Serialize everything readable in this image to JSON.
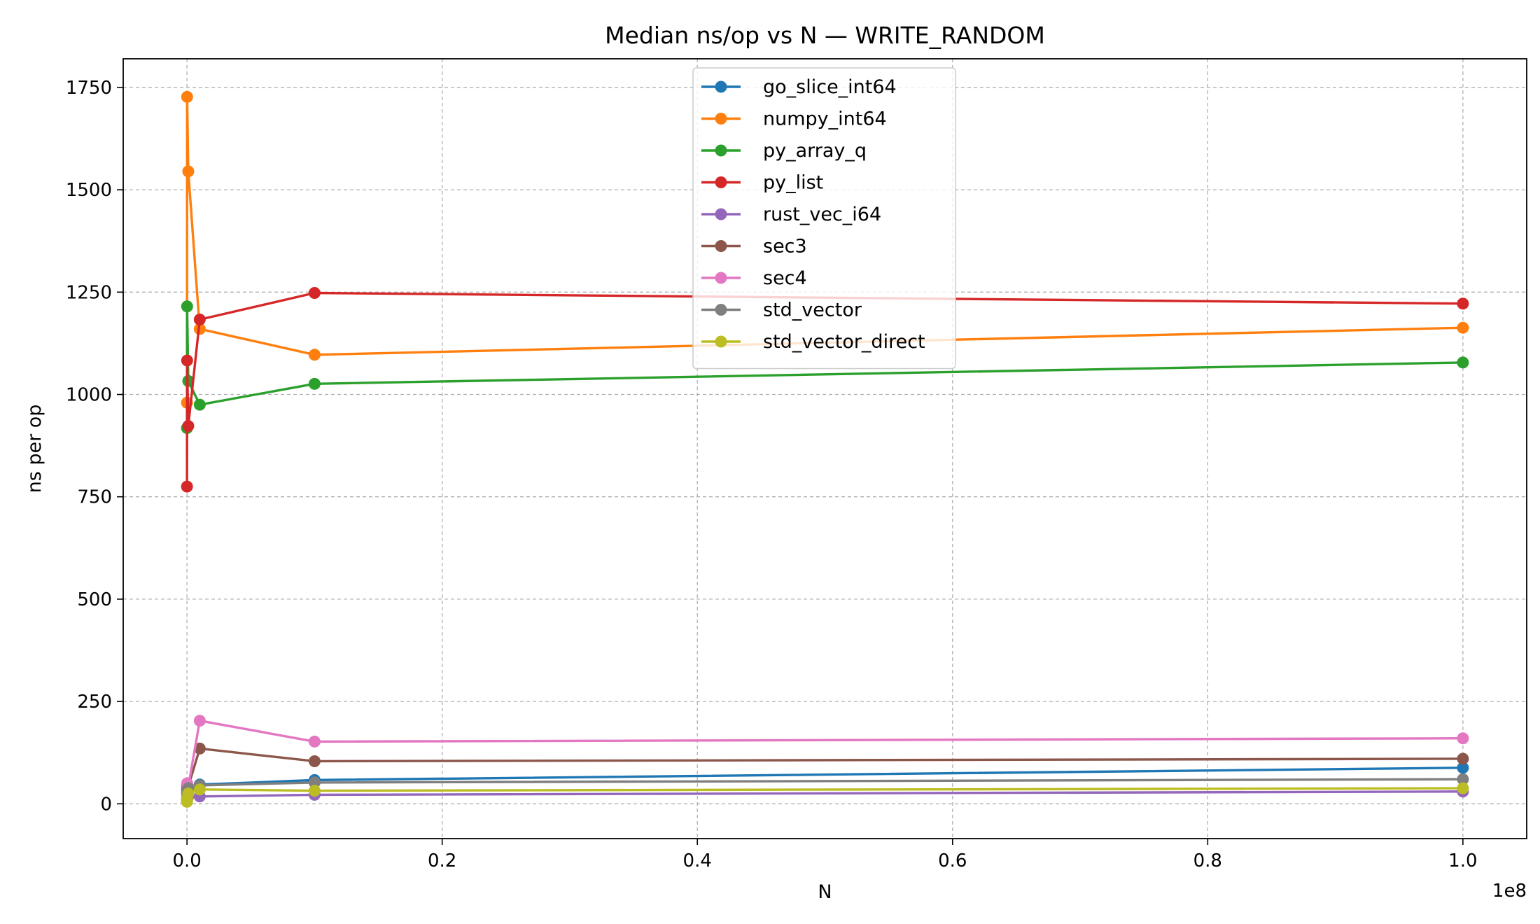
{
  "chart_data": {
    "type": "line",
    "title": "Median ns/op vs N — WRITE_RANDOM",
    "xlabel": "N",
    "ylabel": "ns per op",
    "x_offset_label": "1e8",
    "xlim": [
      -5000000,
      105000000
    ],
    "ylim": [
      -85,
      1820
    ],
    "xticks": [
      0,
      20000000,
      40000000,
      60000000,
      80000000,
      100000000
    ],
    "xtick_labels": [
      "0.0",
      "0.2",
      "0.4",
      "0.6",
      "0.8",
      "1.0"
    ],
    "yticks": [
      0,
      250,
      500,
      750,
      1000,
      1250,
      1500,
      1750
    ],
    "ytick_labels": [
      "0",
      "250",
      "500",
      "750",
      "1000",
      "1250",
      "1500",
      "1750"
    ],
    "grid": true,
    "legend_position": "upper-center",
    "x": [
      1000,
      10000,
      100000,
      1000000,
      10000000,
      100000000
    ],
    "series": [
      {
        "name": "go_slice_int64",
        "color": "#1f77b4",
        "values": [
          12,
          25,
          40,
          47,
          58,
          88
        ]
      },
      {
        "name": "numpy_int64",
        "color": "#ff7f0e",
        "values": [
          980,
          1727,
          1545,
          1160,
          1097,
          1163
        ]
      },
      {
        "name": "py_array_q",
        "color": "#2ca02c",
        "values": [
          918,
          1215,
          1033,
          975,
          1026,
          1078
        ]
      },
      {
        "name": "py_list",
        "color": "#d62728",
        "values": [
          775,
          1083,
          923,
          1183,
          1248,
          1222
        ]
      },
      {
        "name": "rust_vec_i64",
        "color": "#9467bd",
        "values": [
          8,
          15,
          18,
          18,
          22,
          30
        ]
      },
      {
        "name": "sec3",
        "color": "#8c564b",
        "values": [
          35,
          45,
          42,
          135,
          104,
          110
        ]
      },
      {
        "name": "sec4",
        "color": "#e377c2",
        "values": [
          30,
          50,
          42,
          203,
          152,
          160
        ]
      },
      {
        "name": "std_vector",
        "color": "#7f7f7f",
        "values": [
          10,
          30,
          38,
          45,
          52,
          60
        ]
      },
      {
        "name": "std_vector_direct",
        "color": "#bcbd22",
        "values": [
          5,
          12,
          25,
          35,
          32,
          38
        ]
      }
    ]
  }
}
